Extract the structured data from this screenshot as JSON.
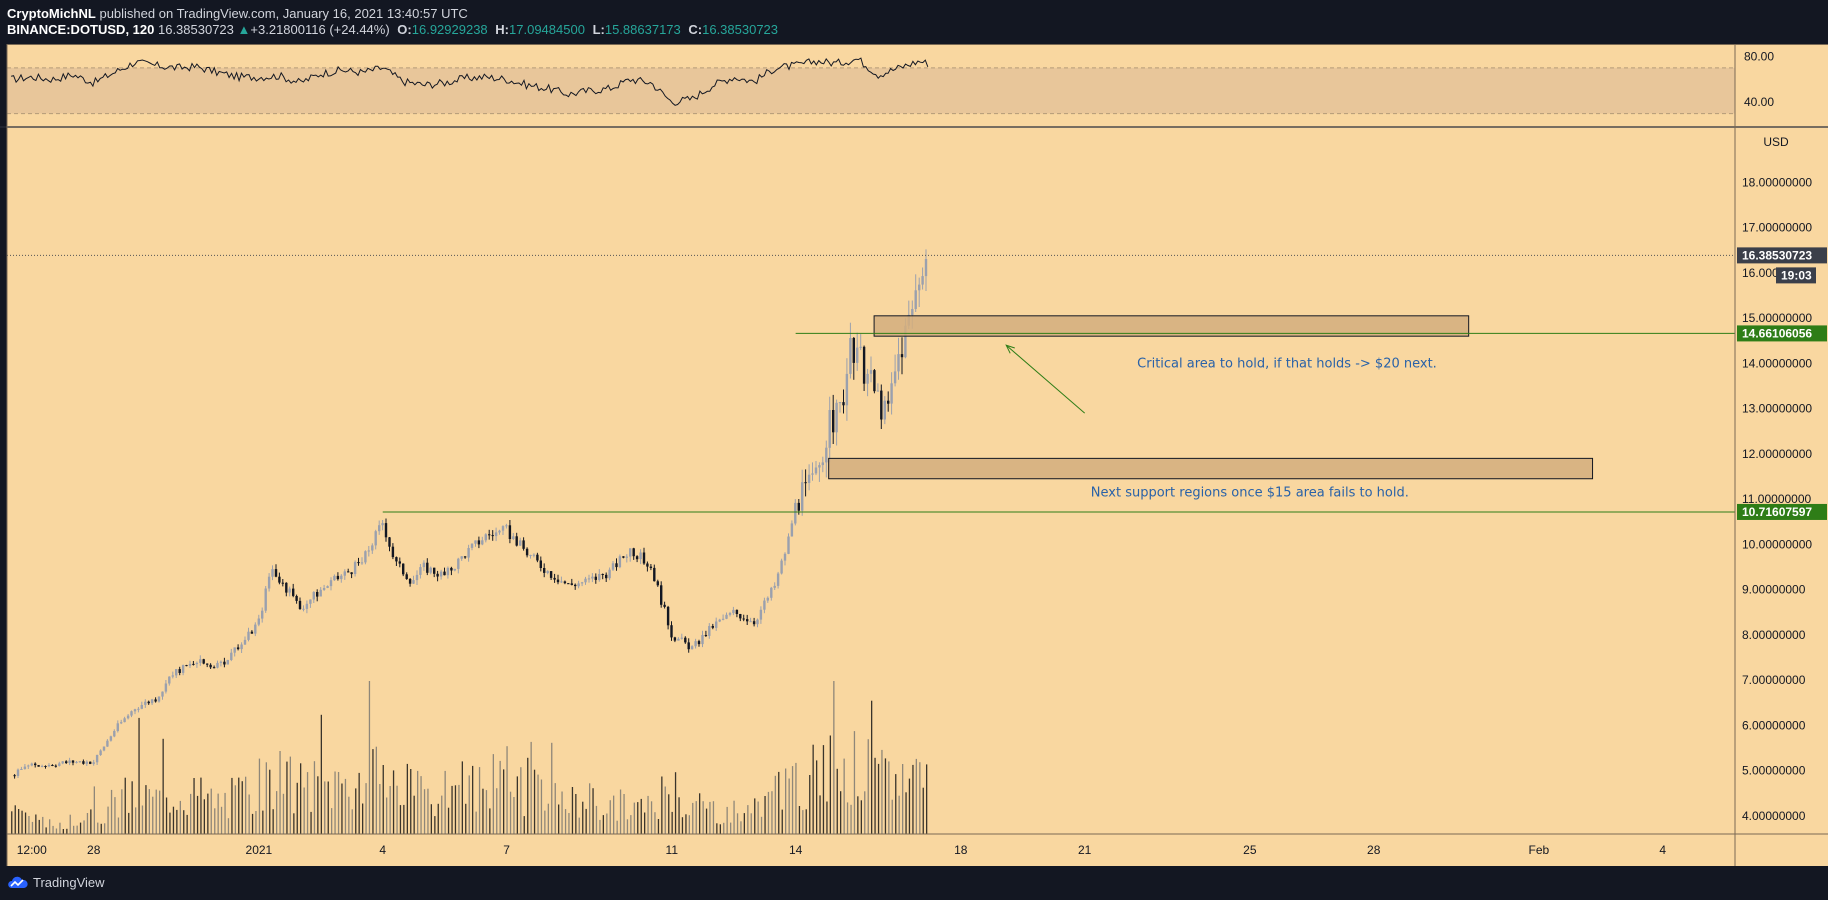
{
  "header": {
    "author": "CryptoMichNL",
    "published": "published on TradingView.com, January 16, 2021 13:40:57 UTC",
    "symbol": "BINANCE:DOTUSD, 120",
    "last": "16.38530723",
    "change_arrow": "▲",
    "change": "+3.21800116 (+24.44%)",
    "o_label": "O:",
    "o_value": "16.92929238",
    "h_label": "H:",
    "h_value": "17.09484500",
    "l_label": "L:",
    "l_value": "15.88637173",
    "c_label": "C:",
    "c_value": "16.38530723"
  },
  "footer": {
    "brand": "TradingView",
    "logo_icon": "tradingview-cloud-icon"
  },
  "colors": {
    "background": "#f9d7a0",
    "bear": "#131722",
    "bull": "#9aa0ae",
    "support_line": "#2e7d17",
    "tag_dark": "#3b3f4a",
    "tag_green": "#2e7d17",
    "annotation": "#2962a8",
    "zone_fill": "#d4ae7e"
  },
  "chart_data": {
    "type": "candlestick",
    "symbol": "BINANCE:DOTUSD",
    "interval": "120",
    "currency": "USD",
    "price_ticks": [
      4,
      5,
      6,
      7,
      8,
      9,
      10,
      11,
      12,
      13,
      14,
      15,
      16,
      17,
      18
    ],
    "price_tick_labels": [
      "4.00000000",
      "5.00000000",
      "6.00000000",
      "7.00000000",
      "8.00000000",
      "9.00000000",
      "10.00000000",
      "11.00000000",
      "12.00000000",
      "13.00000000",
      "14.00000000",
      "15.00000000",
      "16.00000000",
      "17.00000000",
      "18.00000000"
    ],
    "ylim": [
      3.6,
      19.2
    ],
    "x_ticks": [
      {
        "label": "12:00",
        "day": 0.5
      },
      {
        "label": "28",
        "day": 2
      },
      {
        "label": "2021",
        "day": 6
      },
      {
        "label": "4",
        "day": 9
      },
      {
        "label": "7",
        "day": 12
      },
      {
        "label": "11",
        "day": 16
      },
      {
        "label": "14",
        "day": 19
      },
      {
        "label": "18",
        "day": 23
      },
      {
        "label": "21",
        "day": 26
      },
      {
        "label": "25",
        "day": 30
      },
      {
        "label": "28",
        "day": 33
      },
      {
        "label": "Feb",
        "day": 37
      },
      {
        "label": "4",
        "day": 40
      }
    ],
    "xlim_days": [
      -0.1,
      41.75
    ],
    "price_path": [
      [
        0,
        4.9
      ],
      [
        0.5,
        5.1
      ],
      [
        1.5,
        5.2
      ],
      [
        2,
        5.2
      ],
      [
        2.5,
        5.9
      ],
      [
        3,
        6.4
      ],
      [
        3.5,
        6.6
      ],
      [
        4,
        7.2
      ],
      [
        4.5,
        7.4
      ],
      [
        5,
        7.3
      ],
      [
        5.5,
        7.7
      ],
      [
        6,
        8.3
      ],
      [
        6.3,
        9.5
      ],
      [
        6.6,
        9.1
      ],
      [
        7,
        8.6
      ],
      [
        7.5,
        9.0
      ],
      [
        8,
        9.3
      ],
      [
        8.5,
        9.6
      ],
      [
        9,
        10.5
      ],
      [
        9.3,
        9.6
      ],
      [
        9.7,
        9.2
      ],
      [
        10,
        9.5
      ],
      [
        10.5,
        9.3
      ],
      [
        11,
        9.8
      ],
      [
        11.5,
        10.2
      ],
      [
        12,
        10.3
      ],
      [
        12.5,
        9.8
      ],
      [
        13,
        9.4
      ],
      [
        13.5,
        9.1
      ],
      [
        14,
        9.2
      ],
      [
        14.5,
        9.4
      ],
      [
        15,
        9.9
      ],
      [
        15.5,
        9.5
      ],
      [
        16,
        8.0
      ],
      [
        16.5,
        7.7
      ],
      [
        17,
        8.2
      ],
      [
        17.5,
        8.5
      ],
      [
        18,
        8.3
      ],
      [
        18.5,
        9.1
      ],
      [
        18.8,
        10.0
      ],
      [
        19,
        10.9
      ],
      [
        19.5,
        11.5
      ],
      [
        19.8,
        12.6
      ],
      [
        20.1,
        13.0
      ],
      [
        20.3,
        14.2
      ],
      [
        20.6,
        14.0
      ],
      [
        20.9,
        13.4
      ],
      [
        21.2,
        12.8
      ],
      [
        21.5,
        14.2
      ],
      [
        21.8,
        15.1
      ],
      [
        22.1,
        16.4
      ],
      [
        22.2,
        16.4
      ]
    ],
    "last_price": "16.38530723",
    "countdown": "19:03",
    "levels": [
      {
        "price": 14.66106056,
        "label": "14.66106056",
        "start_day": 19
      },
      {
        "price": 10.71607597,
        "label": "10.71607597",
        "start_day": 9
      }
    ],
    "zones": [
      {
        "x0_day": 20.9,
        "x1_day": 35.3,
        "y0": 14.6,
        "y1": 15.05
      },
      {
        "x0_day": 19.8,
        "x1_day": 38.3,
        "y0": 11.45,
        "y1": 11.9
      }
    ],
    "annotations": [
      {
        "text": "Critical area to hold, if that holds -> $20 next.",
        "day": 30.9,
        "price": 14.0
      },
      {
        "text": "Next support regions once $15 area fails to hold.",
        "day": 30.0,
        "price": 11.15
      }
    ],
    "arrow": {
      "from_day": 26.0,
      "from_price": 12.9,
      "to_day": 24.1,
      "to_price": 14.4
    },
    "rsi": {
      "tick_labels": [
        "80.00",
        "40.00"
      ],
      "ticks": [
        80,
        40
      ],
      "band": [
        30,
        70
      ],
      "ylim": [
        20,
        90
      ],
      "path": [
        [
          0,
          60
        ],
        [
          0.5,
          62
        ],
        [
          1,
          60
        ],
        [
          1.5,
          64
        ],
        [
          2,
          57
        ],
        [
          2.5,
          66
        ],
        [
          3,
          75
        ],
        [
          3.5,
          72
        ],
        [
          4,
          70
        ],
        [
          4.5,
          71
        ],
        [
          5,
          66
        ],
        [
          5.5,
          62
        ],
        [
          6,
          62
        ],
        [
          6.5,
          63
        ],
        [
          7,
          57
        ],
        [
          7.5,
          65
        ],
        [
          8,
          68
        ],
        [
          8.5,
          66
        ],
        [
          9,
          70
        ],
        [
          9.5,
          58
        ],
        [
          10,
          55
        ],
        [
          10.5,
          57
        ],
        [
          11,
          61
        ],
        [
          11.5,
          62
        ],
        [
          12,
          60
        ],
        [
          12.5,
          55
        ],
        [
          13,
          52
        ],
        [
          13.5,
          47
        ],
        [
          14,
          50
        ],
        [
          14.5,
          52
        ],
        [
          15,
          60
        ],
        [
          15.5,
          57
        ],
        [
          16,
          40
        ],
        [
          16.5,
          43
        ],
        [
          17,
          55
        ],
        [
          17.5,
          62
        ],
        [
          18,
          58
        ],
        [
          18.5,
          70
        ],
        [
          19,
          72
        ],
        [
          19.5,
          76
        ],
        [
          20,
          74
        ],
        [
          20.5,
          78
        ],
        [
          21,
          64
        ],
        [
          21.5,
          70
        ],
        [
          22,
          76
        ],
        [
          22.2,
          74
        ]
      ]
    },
    "volume_ylim": [
      0,
      10
    ],
    "volume_path": [
      [
        0,
        1.5
      ],
      [
        0.5,
        0.8
      ],
      [
        1,
        0.6
      ],
      [
        1.5,
        0.8
      ],
      [
        2,
        1.0
      ],
      [
        2.5,
        2.0
      ],
      [
        3,
        2.6
      ],
      [
        3.5,
        2.2
      ],
      [
        4,
        2.8
      ],
      [
        4.5,
        2.5
      ],
      [
        5,
        2.0
      ],
      [
        5.5,
        2.4
      ],
      [
        6,
        3.0
      ],
      [
        6.5,
        3.3
      ],
      [
        7,
        3.0
      ],
      [
        7.5,
        3.1
      ],
      [
        8,
        3.3
      ],
      [
        8.5,
        3.5
      ],
      [
        9,
        3.4
      ],
      [
        9.5,
        2.8
      ],
      [
        10,
        2.4
      ],
      [
        10.5,
        2.5
      ],
      [
        11,
        2.9
      ],
      [
        11.5,
        3.2
      ],
      [
        12,
        3.0
      ],
      [
        12.5,
        2.6
      ],
      [
        13,
        2.2
      ],
      [
        13.5,
        2.0
      ],
      [
        14,
        2.0
      ],
      [
        14.5,
        1.8
      ],
      [
        15,
        1.8
      ],
      [
        15.5,
        1.6
      ],
      [
        16,
        2.5
      ],
      [
        16.5,
        2.0
      ],
      [
        17,
        1.6
      ],
      [
        17.5,
        1.4
      ],
      [
        18,
        1.4
      ],
      [
        18.5,
        2.3
      ],
      [
        19,
        3.0
      ],
      [
        19.5,
        3.6
      ],
      [
        20,
        4.2
      ],
      [
        20.5,
        4.2
      ],
      [
        21,
        3.4
      ],
      [
        21.5,
        3.6
      ],
      [
        22,
        3.8
      ],
      [
        22.2,
        3.6
      ]
    ]
  }
}
